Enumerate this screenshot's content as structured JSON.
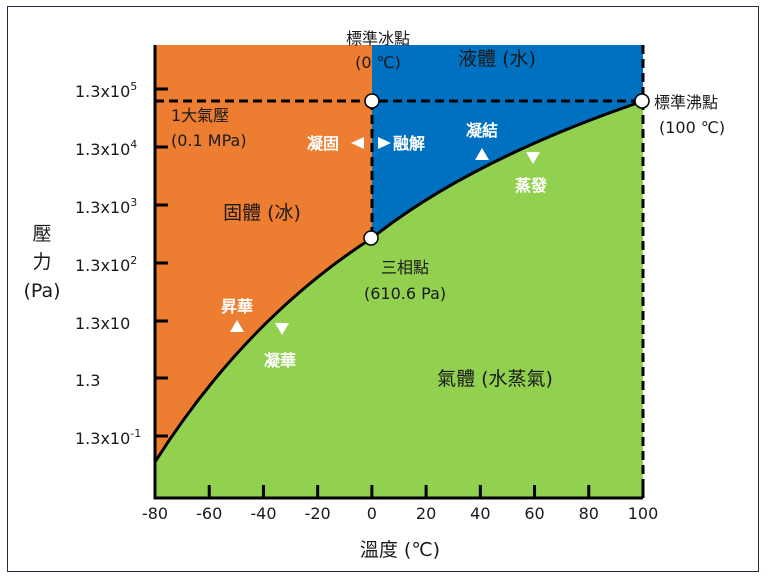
{
  "title": "",
  "colors": {
    "solid": "#ED7D31",
    "liquid": "#0070C0",
    "gas": "#92D050",
    "line": "#000000"
  },
  "y_axis": {
    "label_chars": [
      "壓",
      "力",
      "(Pa)"
    ],
    "ticks": [
      "1.3x10",
      "1.3x10",
      "1.3x10",
      "1.3x10",
      "1.3x10",
      "1.3",
      "1.3x10"
    ],
    "exponents": [
      "5",
      "4",
      "3",
      "2",
      "",
      "",
      "-1"
    ],
    "scale": "log"
  },
  "x_axis": {
    "label": "溫度 (℃)",
    "ticks": [
      "-80",
      "-60",
      "-40",
      "-20",
      "0",
      "20",
      "40",
      "60",
      "80",
      "100"
    ]
  },
  "regions": {
    "solid": "固體 (冰)",
    "liquid": "液體 (水)",
    "gas": "氣體 (水蒸氣)"
  },
  "points": {
    "freezing_title": "標準冰點",
    "freezing_value": "(0 ℃)",
    "boiling_title": "標準沸點",
    "boiling_value": "(100 ℃)",
    "triple_title": "三相點",
    "triple_value": "(610.6 Pa)",
    "atm_title": "1大氣壓",
    "atm_value": "(0.1 MPa)"
  },
  "transitions": {
    "freeze": "凝固",
    "melt": "融解",
    "condense": "凝結",
    "evaporate": "蒸發",
    "sublime": "昇華",
    "deposit": "凝華"
  }
}
